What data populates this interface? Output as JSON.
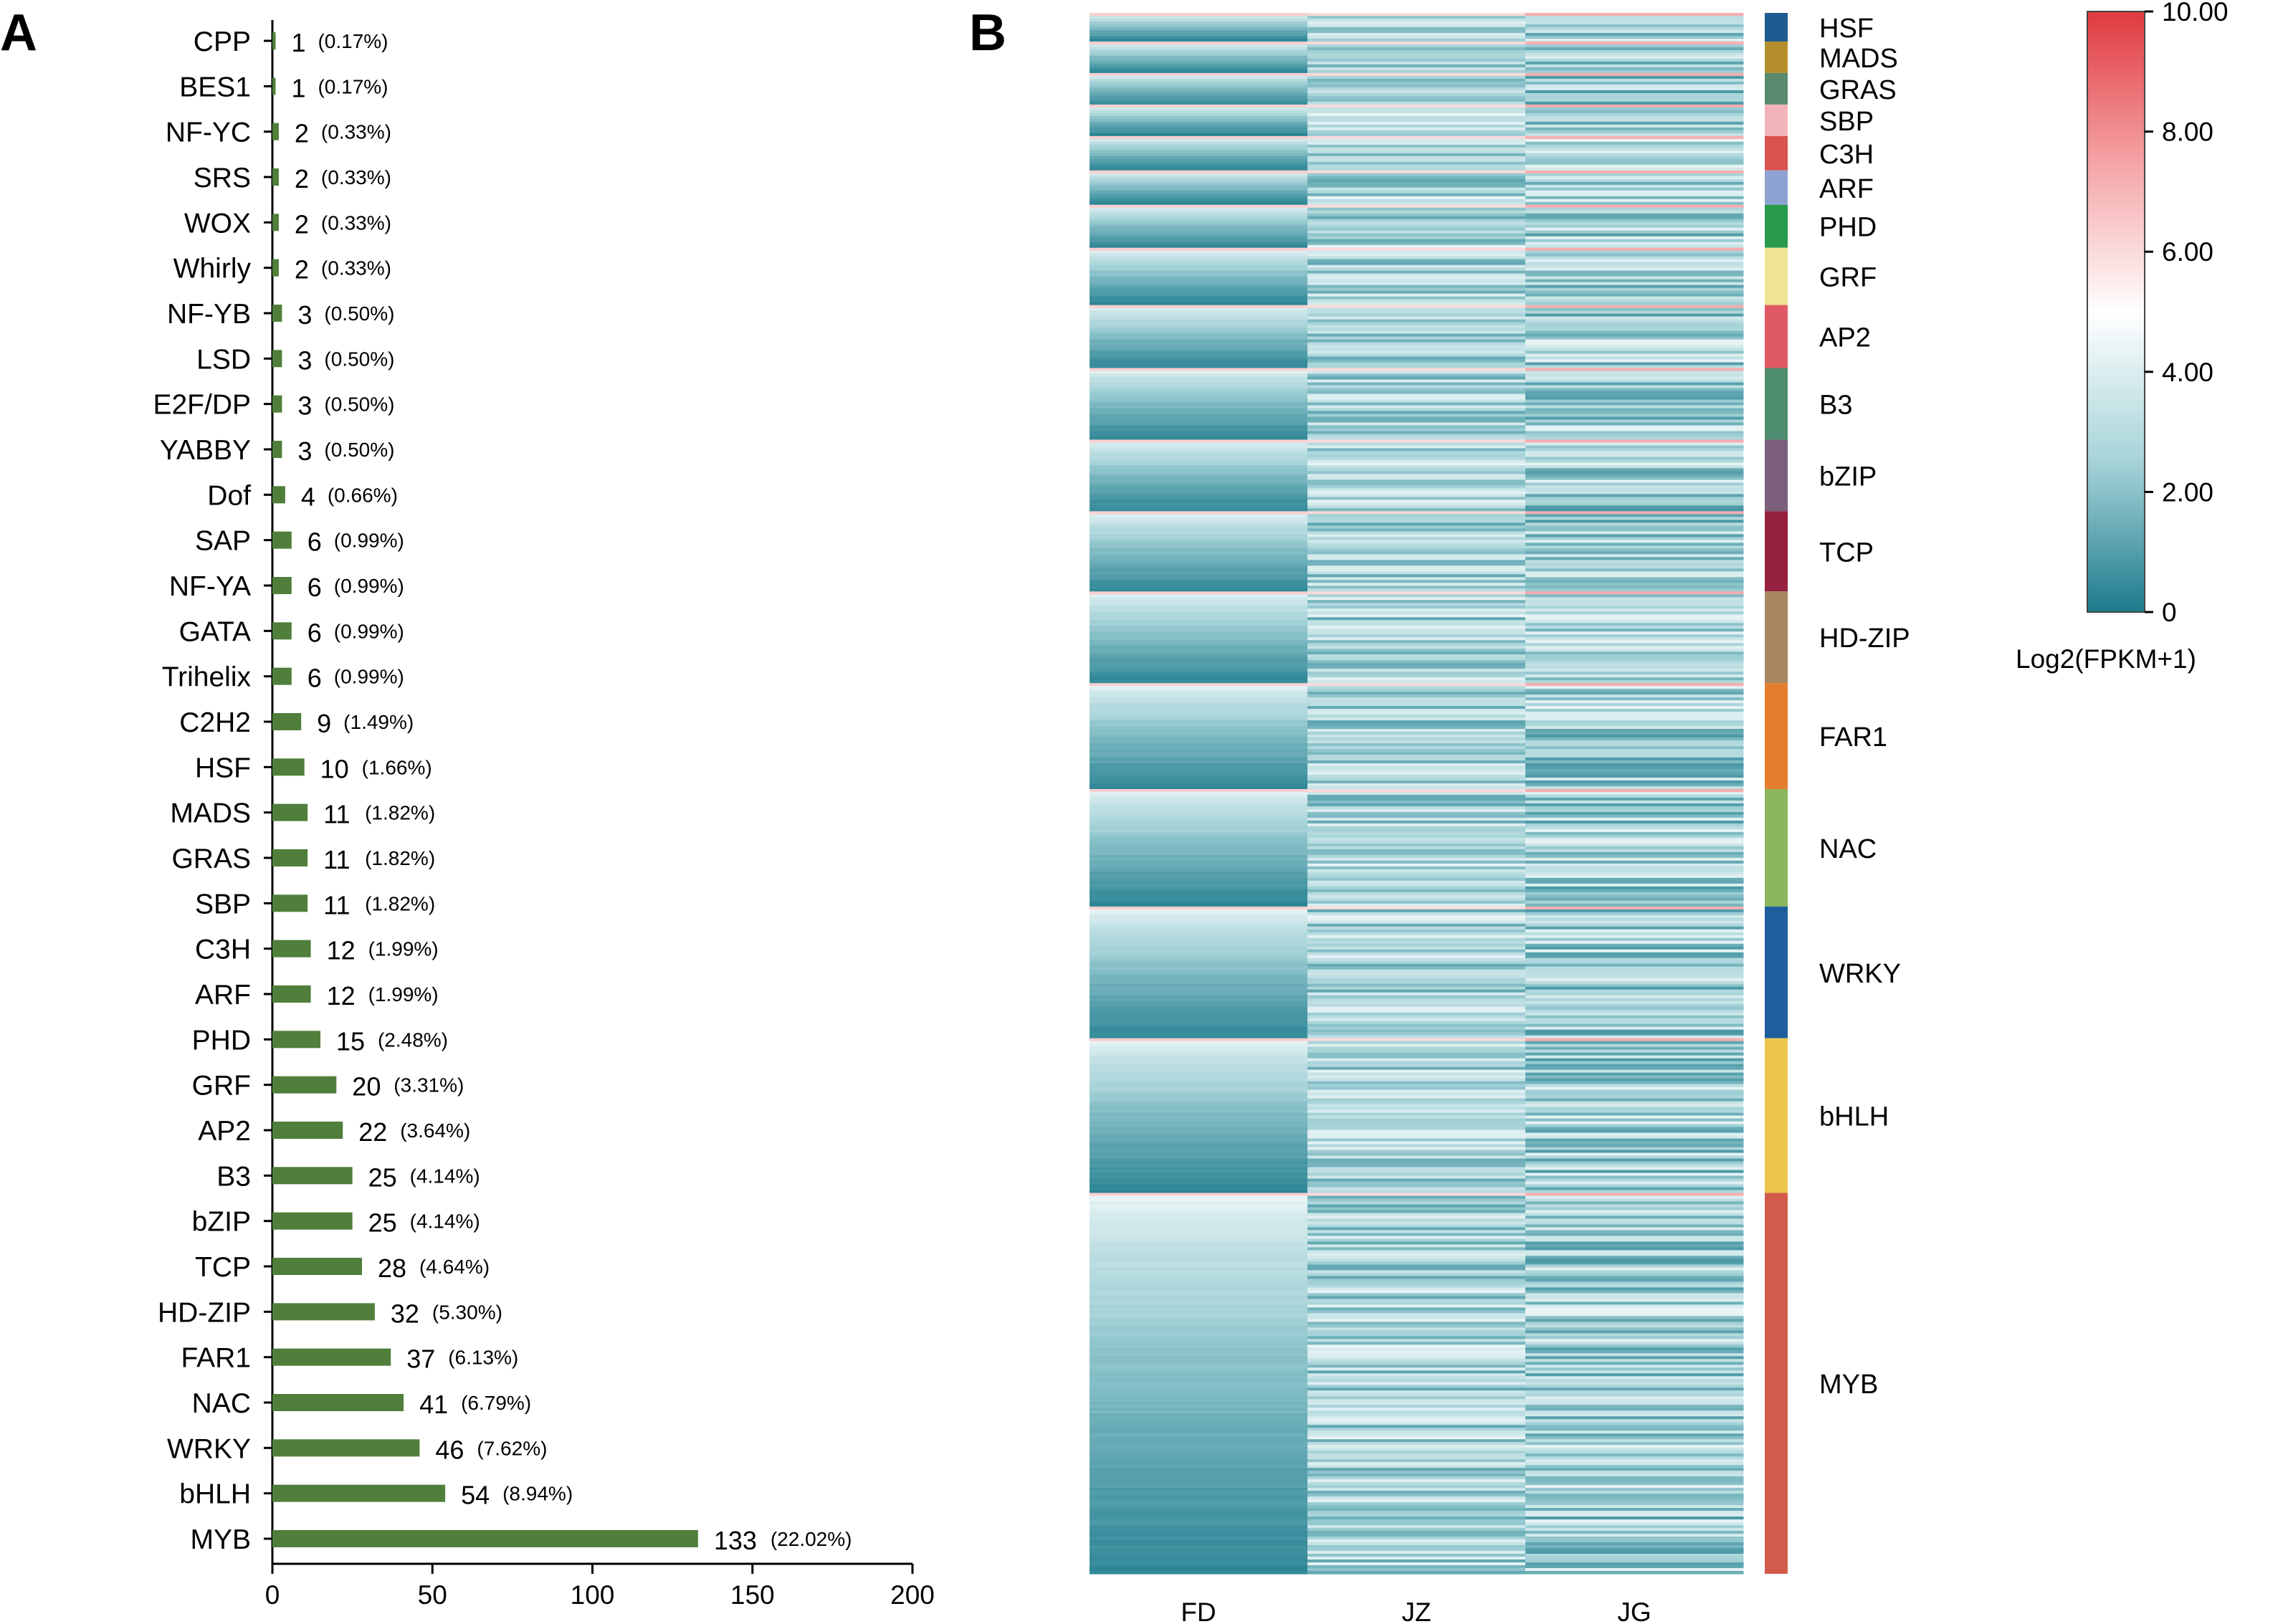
{
  "chart_data": [
    {
      "type": "bar",
      "orientation": "horizontal",
      "panel": "A",
      "categories": [
        "CPP",
        "BES1",
        "NF-YC",
        "SRS",
        "WOX",
        "Whirly",
        "NF-YB",
        "LSD",
        "E2F/DP",
        "YABBY",
        "Dof",
        "SAP",
        "NF-YA",
        "GATA",
        "Trihelix",
        "C2H2",
        "HSF",
        "MADS",
        "GRAS",
        "SBP",
        "C3H",
        "ARF",
        "PHD",
        "GRF",
        "AP2",
        "B3",
        "bZIP",
        "TCP",
        "HD-ZIP",
        "FAR1",
        "NAC",
        "WRKY",
        "bHLH",
        "MYB"
      ],
      "values": [
        1,
        1,
        2,
        2,
        2,
        2,
        3,
        3,
        3,
        3,
        4,
        6,
        6,
        6,
        6,
        9,
        10,
        11,
        11,
        11,
        12,
        12,
        15,
        20,
        22,
        25,
        25,
        28,
        32,
        37,
        41,
        46,
        54,
        133
      ],
      "percent_labels": [
        "(0.17%)",
        "(0.17%)",
        "(0.33%)",
        "(0.33%)",
        "(0.33%)",
        "(0.33%)",
        "(0.50%)",
        "(0.50%)",
        "(0.50%)",
        "(0.50%)",
        "(0.66%)",
        "(0.99%)",
        "(0.99%)",
        "(0.99%)",
        "(0.99%)",
        "(1.49%)",
        "(1.66%)",
        "(1.82%)",
        "(1.82%)",
        "(1.82%)",
        "(1.99%)",
        "(1.99%)",
        "(2.48%)",
        "(3.31%)",
        "(3.64%)",
        "(4.14%)",
        "(4.14%)",
        "(4.64%)",
        "(5.30%)",
        "(6.13%)",
        "(6.79%)",
        "(7.62%)",
        "(8.94%)",
        "(22.02%)"
      ],
      "xlim": [
        0,
        200
      ],
      "xticks": [
        "0",
        "50",
        "100",
        "150",
        "200"
      ],
      "bar_color": "#4f7f3a",
      "title": "",
      "xlabel": "",
      "ylabel": ""
    },
    {
      "type": "heatmap",
      "panel": "B",
      "columns": [
        "FD",
        "JZ",
        "JG"
      ],
      "families": [
        {
          "name": "HSF",
          "count": 10,
          "color": "#1f5a92"
        },
        {
          "name": "MADS",
          "count": 11,
          "color": "#b58f2b"
        },
        {
          "name": "GRAS",
          "count": 11,
          "color": "#5a8a6e"
        },
        {
          "name": "SBP",
          "count": 11,
          "color": "#f2b4b8"
        },
        {
          "name": "C3H",
          "count": 12,
          "color": "#d9534f"
        },
        {
          "name": "ARF",
          "count": 12,
          "color": "#8fa3d3"
        },
        {
          "name": "PHD",
          "count": 15,
          "color": "#279a4e"
        },
        {
          "name": "GRF",
          "count": 20,
          "color": "#efe491"
        },
        {
          "name": "AP2",
          "count": 22,
          "color": "#e05a66"
        },
        {
          "name": "B3",
          "count": 25,
          "color": "#4d8c6e"
        },
        {
          "name": "bZIP",
          "count": 25,
          "color": "#7c5f7d"
        },
        {
          "name": "TCP",
          "count": 28,
          "color": "#962040"
        },
        {
          "name": "HD-ZIP",
          "count": 32,
          "color": "#a8865f"
        },
        {
          "name": "FAR1",
          "count": 37,
          "color": "#e47e2c"
        },
        {
          "name": "NAC",
          "count": 41,
          "color": "#8cb65c"
        },
        {
          "name": "WRKY",
          "count": 46,
          "color": "#1f5e9c"
        },
        {
          "name": "bHLH",
          "count": 54,
          "color": "#ecc54c"
        },
        {
          "name": "MYB",
          "count": 133,
          "color": "#d25c4b"
        }
      ],
      "colorbar": {
        "label": "Log2(FPKM+1)",
        "min": 0,
        "max": 10,
        "ticks": [
          "10.00",
          "8.00",
          "6.00",
          "4.00",
          "2.00",
          "0"
        ],
        "colors": [
          "#1c7b8c",
          "#a6d3d8",
          "#ffffff",
          "#f4a3a5",
          "#e03a3f"
        ]
      }
    }
  ]
}
